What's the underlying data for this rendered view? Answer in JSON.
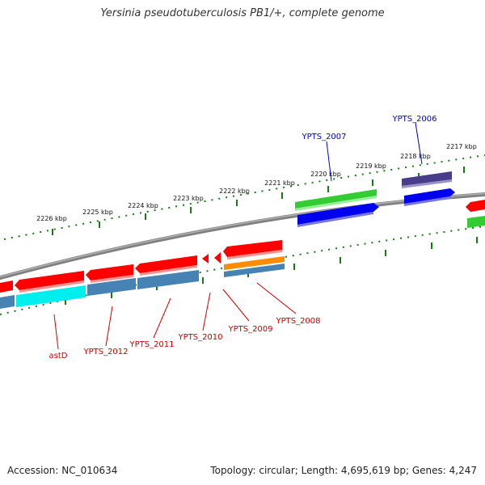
{
  "title": "Yersinia pseudotuberculosis PB1/+, complete genome",
  "footer": {
    "accession": "Accession: NC_010634",
    "topology": "Topology: circular; Length: 4,695,619 bp; Genes: 4,247"
  },
  "colors": {
    "backbone": "#808080",
    "tick": "#1a7a1a",
    "forward_label": "#0000cc",
    "reverse_label": "#cc0000",
    "red_gene": "#ff0000",
    "blue_gene": "#0000ee",
    "green_gene": "#33cc33",
    "cyan_gene": "#00eeee",
    "steel_gene": "#4682b4",
    "orange_gene": "#ff8c00",
    "navy_gene": "#483d8b"
  },
  "upper_ruler": {
    "labels": [
      "2226 kbp",
      "2225 kbp",
      "2224 kbp",
      "2223 kbp",
      "2222 kbp",
      "2221 kbp",
      "2220 kbp",
      "2219 kbp",
      "2218 kbp",
      "2217 kbp"
    ]
  },
  "forward_gene_labels": [
    "YPTS_2007",
    "YPTS_2006"
  ],
  "reverse_gene_labels": [
    "astD",
    "YPTS_2012",
    "YPTS_2011",
    "YPTS_2010",
    "YPTS_2009",
    "YPTS_2008"
  ]
}
